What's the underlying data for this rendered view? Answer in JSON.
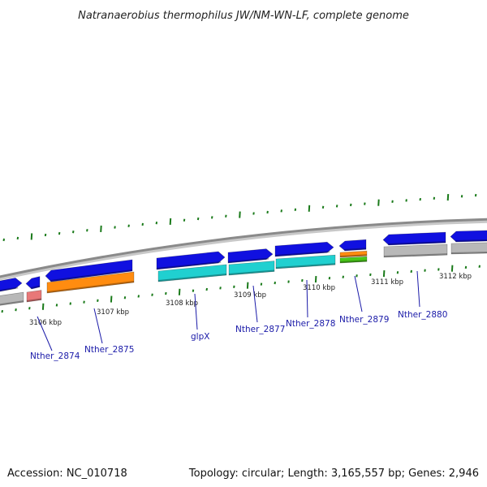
{
  "title": "Natranaerobius thermophilus JW/NM-WN-LF, complete genome",
  "footer": {
    "accession": "Accession: NC_010718",
    "summary": "Topology: circular; Length: 3,165,557 bp; Genes: 2,946"
  },
  "scale": {
    "unit": "kbp",
    "labels": [
      "3106 kbp",
      "3107 kbp",
      "3108 kbp",
      "3109 kbp",
      "3110 kbp",
      "3111 kbp",
      "3112 kbp"
    ]
  },
  "colors": {
    "forward_cds": "#1010e0",
    "orange": "#ff8c10",
    "cyan": "#20d0d0",
    "pink": "#e87878",
    "green": "#48c818",
    "grey": "#b8b8b8",
    "backbone": "#8a8a8a",
    "ticks": "#1a7a1a",
    "labels": "#1a1aa8"
  },
  "genes": [
    {
      "label": "Nther_2874"
    },
    {
      "label": "Nther_2875"
    },
    {
      "label": "glpX"
    },
    {
      "label": "Nther_2877"
    },
    {
      "label": "Nther_2878"
    },
    {
      "label": "Nther_2879"
    },
    {
      "label": "Nther_2880"
    }
  ]
}
